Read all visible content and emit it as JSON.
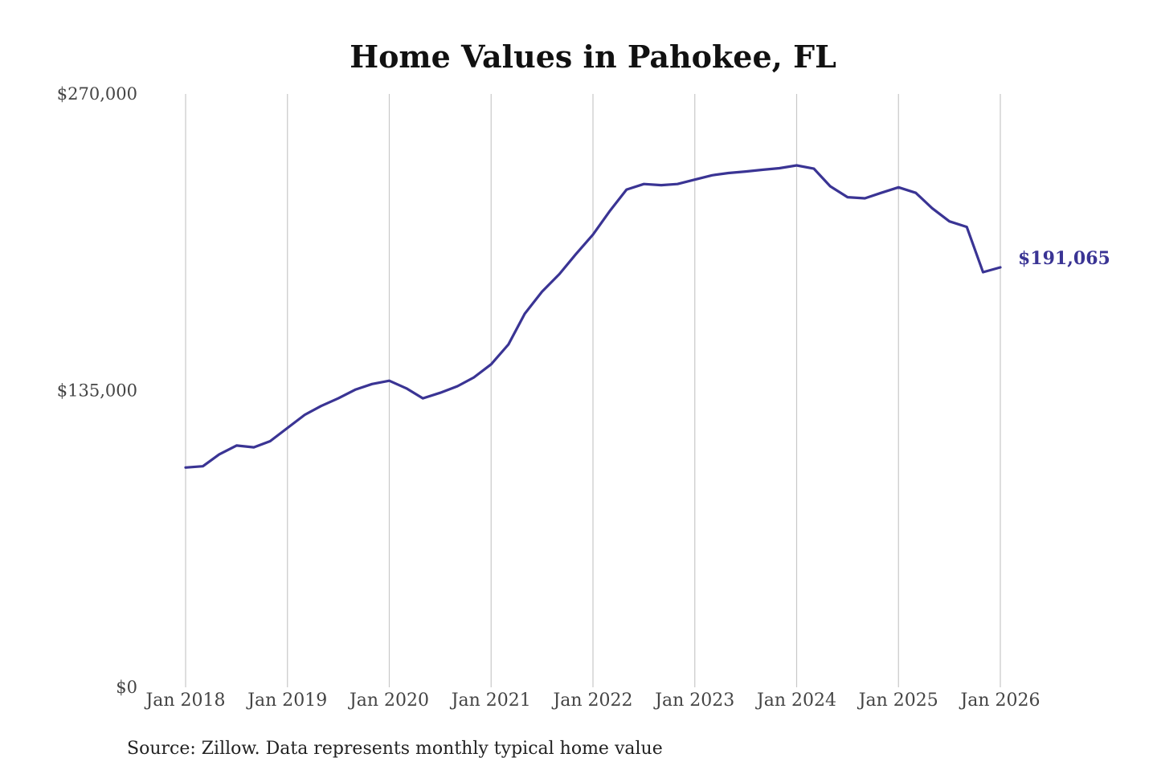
{
  "chart_data": {
    "type": "line",
    "title": "Home Values in Pahokee, FL",
    "xlabel": "",
    "ylabel": "",
    "source": "Source: Zillow. Data represents monthly typical home value",
    "ylim": [
      0,
      270000
    ],
    "y_ticks": [
      "$270,000",
      "$135,000",
      "$0"
    ],
    "y_tick_values": [
      270000,
      135000,
      0
    ],
    "x_ticks": [
      "Jan 2018",
      "Jan 2019",
      "Jan 2020",
      "Jan 2021",
      "Jan 2022",
      "Jan 2023",
      "Jan 2024",
      "Jan 2025",
      "Jan 2026"
    ],
    "x_tick_values": [
      2018,
      2019,
      2020,
      2021,
      2022,
      2023,
      2024,
      2025,
      2026
    ],
    "xlim": [
      2018,
      2026
    ],
    "grid": "vertical",
    "line_color": "#3a3494",
    "end_label": "$191,065",
    "series": [
      {
        "x": [
          2018.0,
          2018.17,
          2018.33,
          2018.5,
          2018.67,
          2018.83,
          2019.0,
          2019.17,
          2019.33,
          2019.5,
          2019.67,
          2019.83,
          2020.0,
          2020.17,
          2020.33,
          2020.5,
          2020.67,
          2020.83,
          2021.0,
          2021.17,
          2021.33,
          2021.5,
          2021.67,
          2021.83,
          2022.0,
          2022.17,
          2022.33,
          2022.5,
          2022.67,
          2022.83,
          2023.0,
          2023.17,
          2023.33,
          2023.5,
          2023.67,
          2023.83,
          2024.0,
          2024.17,
          2024.33,
          2024.5,
          2024.67,
          2024.83,
          2025.0,
          2025.17,
          2025.33,
          2025.5,
          2025.67,
          2025.83,
          2026.0
        ],
        "values": [
          100000,
          100600,
          106000,
          110000,
          109200,
          112000,
          118000,
          124000,
          128000,
          131500,
          135500,
          138000,
          139500,
          136000,
          131500,
          134000,
          137000,
          141000,
          147000,
          156000,
          170000,
          180000,
          188000,
          197000,
          206000,
          217000,
          226500,
          229000,
          228500,
          229000,
          231000,
          233000,
          234000,
          234700,
          235500,
          236200,
          237500,
          236000,
          228000,
          223000,
          222500,
          225000,
          227500,
          225000,
          218000,
          212000,
          209500,
          188900,
          191065
        ]
      }
    ]
  }
}
